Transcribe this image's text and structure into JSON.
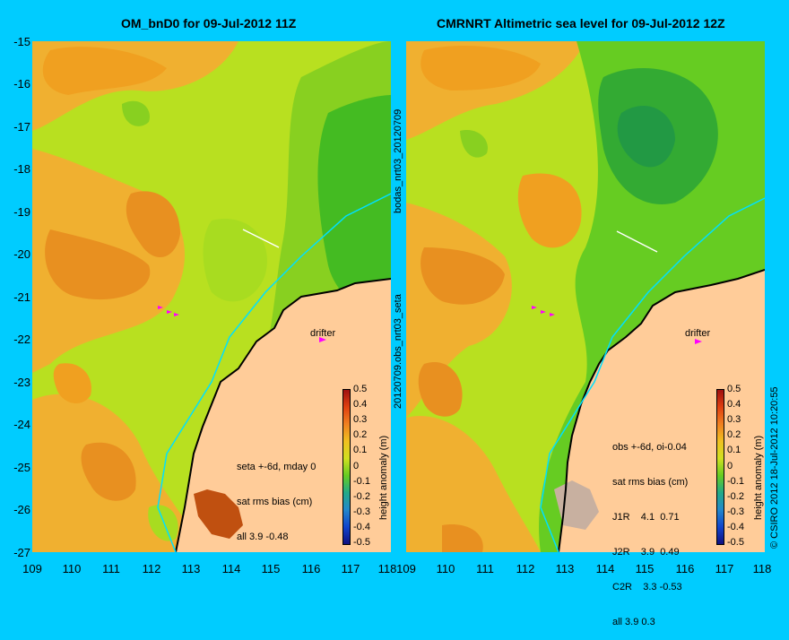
{
  "left_title": "OM_bnD0 for 09-Jul-2012 11Z",
  "right_title": "CMRNRT Altimetric sea level  for 09-Jul-2012 12Z",
  "y_ticks": [
    "-15",
    "-16",
    "-17",
    "-18",
    "-19",
    "-20",
    "-21",
    "-22",
    "-23",
    "-24",
    "-25",
    "-26",
    "-27"
  ],
  "x_ticks_left": [
    "109",
    "110",
    "111",
    "112",
    "113",
    "114",
    "115",
    "116",
    "117",
    "118"
  ],
  "x_ticks_right": [
    "109",
    "110",
    "111",
    "112",
    "113",
    "114",
    "115",
    "116",
    "117",
    "118"
  ],
  "middle_label_top": "bodas_nrt03_20120709",
  "middle_label_bottom": "20120709.obs_nrt03_seta",
  "credit": "© CSIRO 2012  18-Jul-2012 10:20:55",
  "drifter_label": "drifter",
  "colorbar": {
    "label": "height anomaly (m)",
    "ticks": [
      "0.5",
      "0.4",
      "0.3",
      "0.2",
      "0.1",
      "0",
      "-0.1",
      "-0.2",
      "-0.3",
      "-0.4",
      "-0.5"
    ]
  },
  "left_annotation": [
    "seta +-6d, mday 0",
    "sat rms bias (cm)",
    "all 3.9 -0.48"
  ],
  "right_annotation": [
    "obs +-6d, oi-0.04",
    "sat rms bias (cm)",
    "J1R    4.1  0.71",
    "J2R    3.9  0.49",
    "C2R    3.3 -0.53",
    "all 3.9 0.3"
  ],
  "colors": {
    "background": "#00ccff",
    "land": "#ffcc99",
    "orange": "#f0a020",
    "green": "#66cc22",
    "coast_cyan": "#00ffff"
  }
}
